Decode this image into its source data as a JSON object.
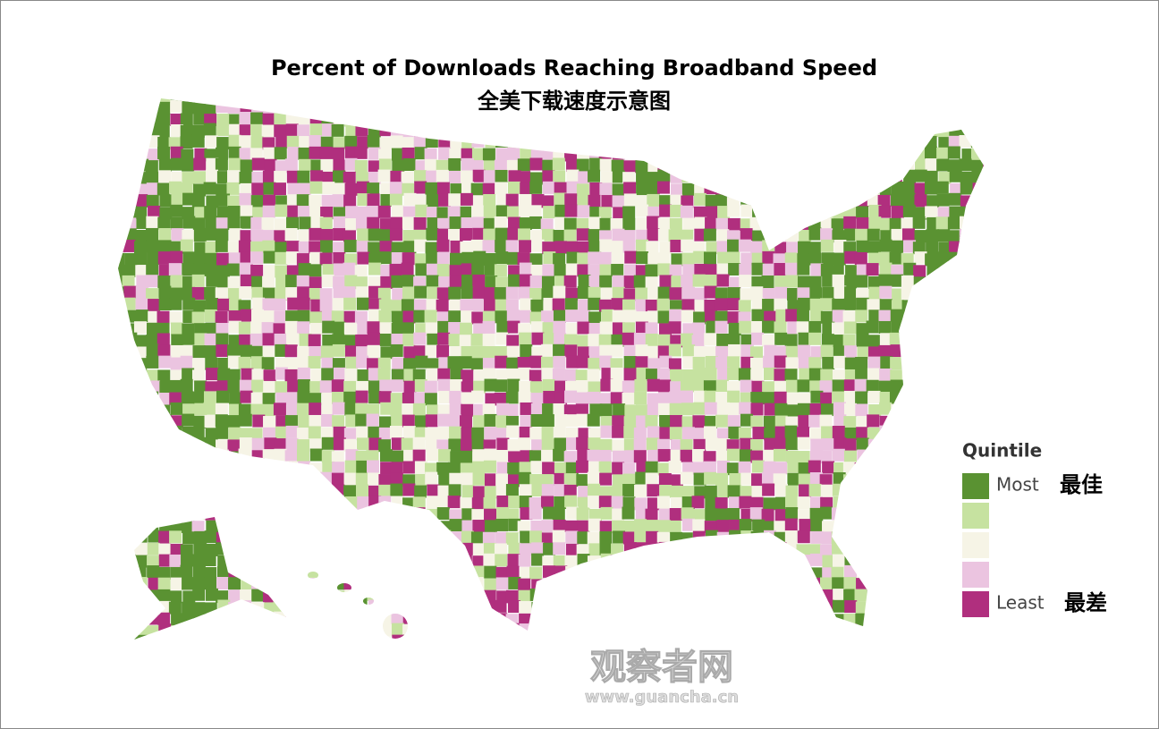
{
  "title": "Percent of Downloads Reaching Broadband Speed",
  "subtitle": "全美下载速度示意图",
  "legend": {
    "title": "Quintile",
    "items": [
      {
        "color": "#5a9232",
        "label": "Most",
        "note": "最佳"
      },
      {
        "color": "#c6e2a0"
      },
      {
        "color": "#f6f4e6"
      },
      {
        "color": "#ebc4e0"
      },
      {
        "color": "#b02f7e",
        "label": "Least",
        "note": "最差"
      }
    ]
  },
  "watermark": {
    "name": "观察者网",
    "url": "www.guancha.cn"
  }
}
